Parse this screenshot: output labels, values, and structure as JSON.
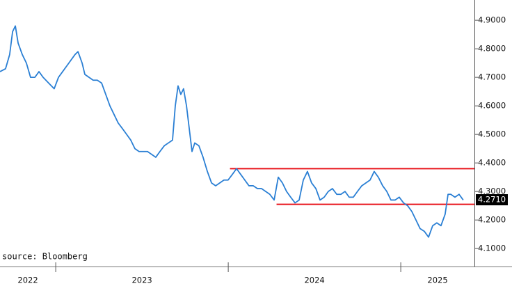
{
  "chart_data": {
    "type": "line",
    "source": "source: Bloomberg",
    "x": [
      2022.677,
      2022.709,
      2022.733,
      2022.75,
      2022.766,
      2022.782,
      2022.806,
      2022.83,
      2022.854,
      2022.879,
      2022.903,
      2022.927,
      2022.959,
      2022.991,
      2023.016,
      2023.04,
      2023.064,
      2023.088,
      2023.112,
      2023.129,
      2023.153,
      2023.169,
      2023.193,
      2023.217,
      2023.241,
      2023.266,
      2023.29,
      2023.314,
      2023.338,
      2023.362,
      2023.387,
      2023.411,
      2023.435,
      2023.459,
      2023.483,
      2023.508,
      2023.532,
      2023.556,
      2023.58,
      2023.604,
      2023.629,
      2023.653,
      2023.677,
      2023.693,
      2023.709,
      2023.725,
      2023.741,
      2023.758,
      2023.774,
      2023.79,
      2023.806,
      2023.83,
      2023.854,
      2023.879,
      2023.903,
      2023.927,
      2023.951,
      2023.975,
      2023.999,
      2024.024,
      2024.048,
      2024.072,
      2024.096,
      2024.12,
      2024.145,
      2024.169,
      2024.193,
      2024.217,
      2024.241,
      2024.266,
      2024.29,
      2024.314,
      2024.338,
      2024.362,
      2024.387,
      2024.411,
      2024.435,
      2024.459,
      2024.483,
      2024.508,
      2024.532,
      2024.556,
      2024.58,
      2024.604,
      2024.629,
      2024.653,
      2024.677,
      2024.701,
      2024.725,
      2024.749,
      2024.774,
      2024.798,
      2024.822,
      2024.846,
      2024.87,
      2024.895,
      2024.919,
      2024.943,
      2024.967,
      2024.991,
      2025.016,
      2025.04,
      2025.064,
      2025.088,
      2025.112,
      2025.137,
      2025.161,
      2025.185,
      2025.209,
      2025.233,
      2025.257,
      2025.274,
      2025.29,
      2025.314,
      2025.338,
      2025.362
    ],
    "series": [
      {
        "color": "#2a7fd4",
        "values": [
          4.72,
          4.73,
          4.78,
          4.86,
          4.88,
          4.82,
          4.78,
          4.75,
          4.7,
          4.7,
          4.72,
          4.7,
          4.68,
          4.66,
          4.7,
          4.72,
          4.74,
          4.76,
          4.78,
          4.79,
          4.75,
          4.71,
          4.7,
          4.69,
          4.69,
          4.68,
          4.64,
          4.6,
          4.57,
          4.54,
          4.52,
          4.5,
          4.48,
          4.45,
          4.44,
          4.44,
          4.44,
          4.43,
          4.42,
          4.44,
          4.46,
          4.47,
          4.48,
          4.6,
          4.67,
          4.64,
          4.66,
          4.6,
          4.52,
          4.44,
          4.47,
          4.46,
          4.42,
          4.37,
          4.33,
          4.32,
          4.33,
          4.34,
          4.34,
          4.36,
          4.38,
          4.36,
          4.34,
          4.32,
          4.32,
          4.31,
          4.31,
          4.3,
          4.29,
          4.27,
          4.35,
          4.33,
          4.3,
          4.28,
          4.26,
          4.27,
          4.34,
          4.37,
          4.33,
          4.31,
          4.27,
          4.28,
          4.3,
          4.31,
          4.29,
          4.29,
          4.3,
          4.28,
          4.28,
          4.3,
          4.32,
          4.33,
          4.34,
          4.37,
          4.35,
          4.32,
          4.3,
          4.27,
          4.27,
          4.28,
          4.26,
          4.25,
          4.23,
          4.2,
          4.17,
          4.16,
          4.14,
          4.18,
          4.19,
          4.18,
          4.22,
          4.29,
          4.29,
          4.28,
          4.29,
          4.27
        ]
      }
    ],
    "xlim": [
      2022.677,
      2025.427
    ],
    "xticks": [
      2023,
      2024,
      2025
    ],
    "year_labels": [
      "2022",
      "2023",
      "2024",
      "2025"
    ],
    "ylim": [
      4.037,
      4.971
    ],
    "yticks": [
      {
        "value": 4.1,
        "label": "4.1000"
      },
      {
        "value": 4.2,
        "label": "4.2000"
      },
      {
        "value": 4.3,
        "label": "4.3000"
      },
      {
        "value": 4.4,
        "label": "4.4000"
      },
      {
        "value": 4.5,
        "label": "4.5000"
      },
      {
        "value": 4.6,
        "label": "4.6000"
      },
      {
        "value": 4.7,
        "label": "4.7000"
      },
      {
        "value": 4.8,
        "label": "4.8000"
      },
      {
        "value": 4.9,
        "label": "4.9000"
      }
    ],
    "last_value": {
      "value": 4.271,
      "label": "4.2710"
    },
    "levels": [
      {
        "y": 4.38,
        "x_start": 2024.01,
        "color": "#e8141b"
      },
      {
        "y": 4.255,
        "x_start": 2024.28,
        "color": "#e8141b"
      }
    ]
  }
}
